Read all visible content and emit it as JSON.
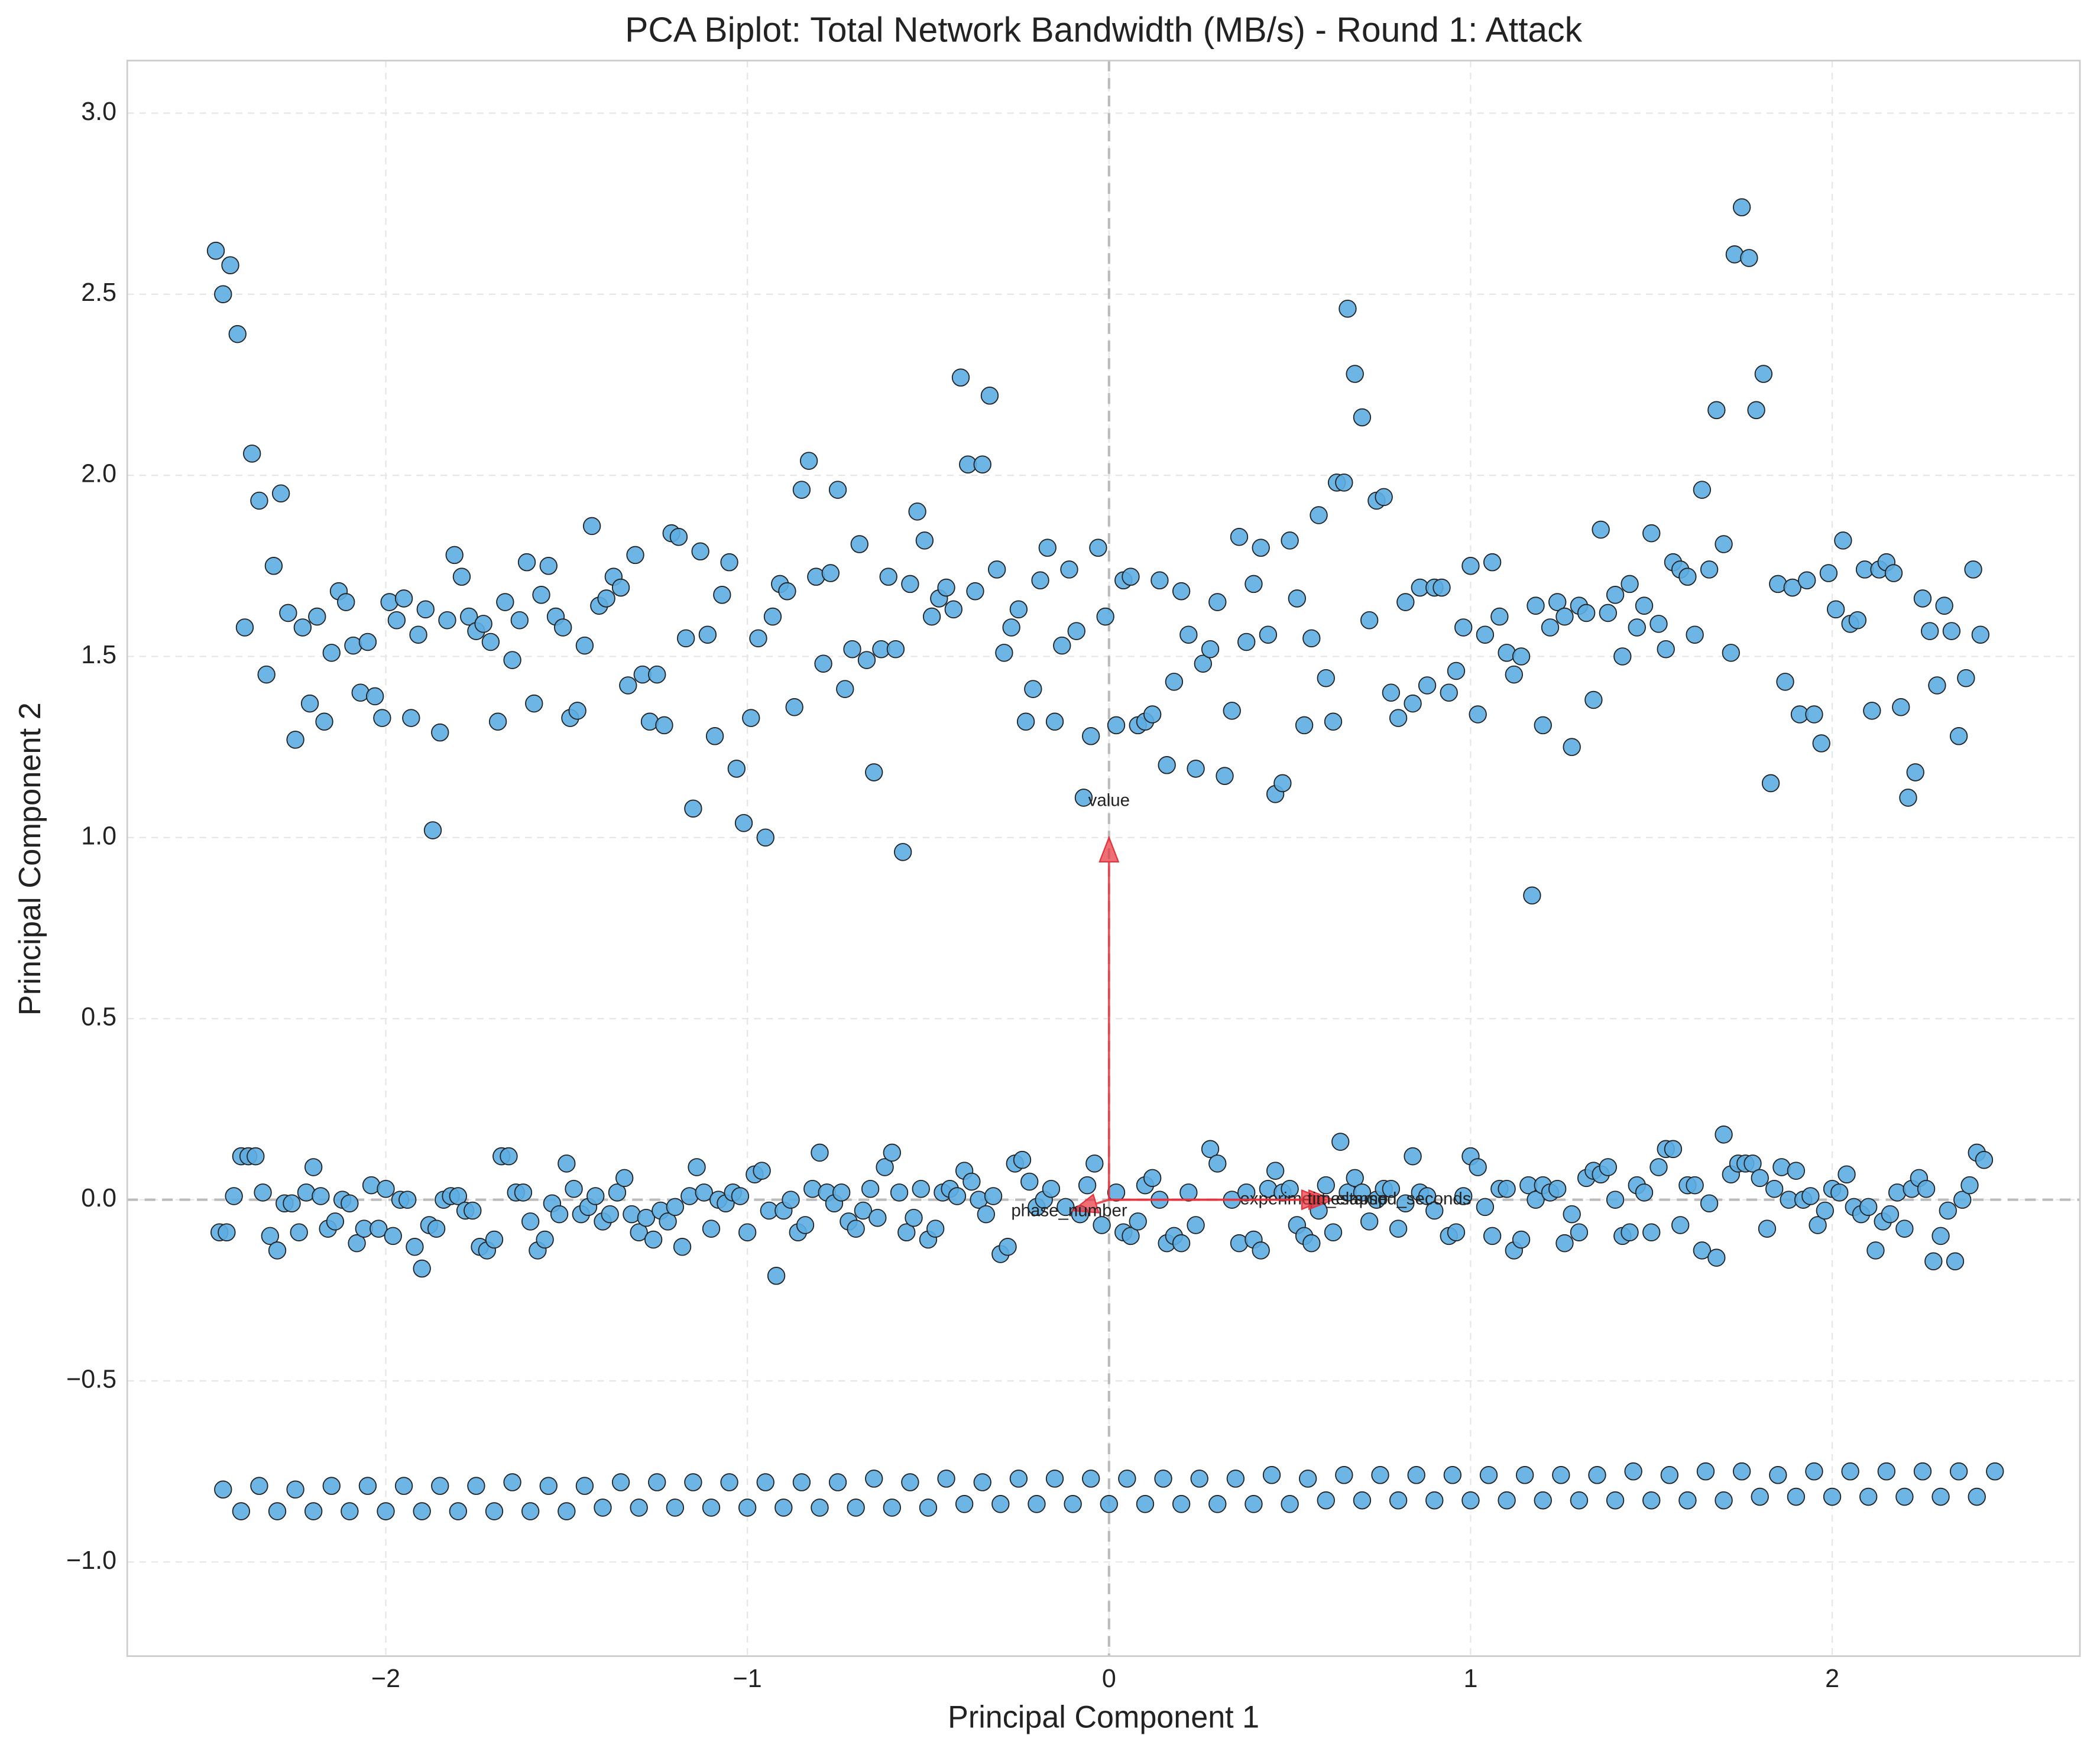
{
  "chart_data": {
    "type": "scatter",
    "title": "PCA Biplot: Total Network Bandwidth (MB/s) - Round 1: Attack",
    "x_label": "Principal Component 1",
    "y_label": "Principal Component 2",
    "color": "#5dade2",
    "grid": true,
    "xlim": [
      -2.715,
      2.685
    ],
    "ylim": [
      -1.26,
      3.145
    ],
    "xticks": [
      {
        "value": -2,
        "label": "−2"
      },
      {
        "value": -1,
        "label": "−1"
      },
      0,
      1,
      2
    ],
    "yticks": [
      {
        "value": -1.0,
        "label": "−1.0"
      },
      {
        "value": -0.5,
        "label": "−0.5"
      },
      {
        "value": 0.0,
        "label": "0.0"
      },
      0.5,
      {
        "value": 1.0,
        "label": "1.0"
      },
      1.5,
      {
        "value": 2.0,
        "label": "2.0"
      },
      2.5,
      {
        "value": 3.0,
        "label": "3.0"
      }
    ],
    "x": [
      -2.47,
      -2.45,
      -2.43,
      -2.41,
      -2.39,
      -2.37,
      -2.35,
      -2.33,
      -2.31,
      -2.29,
      -2.27,
      -2.25,
      -2.23,
      -2.21,
      -2.19,
      -2.17,
      -2.15,
      -2.13,
      -2.11,
      -2.09,
      -2.07,
      -2.05,
      -2.03,
      -2.01,
      -1.99,
      -1.97,
      -1.95,
      -1.93,
      -1.91,
      -1.89,
      -1.87,
      -1.85,
      -1.83,
      -1.81,
      -1.79,
      -1.77,
      -1.75,
      -1.73,
      -1.71,
      -1.69,
      -1.67,
      -1.65,
      -1.63,
      -1.61,
      -1.59,
      -1.57,
      -1.55,
      -1.53,
      -1.51,
      -1.49,
      -1.47,
      -1.45,
      -1.43,
      -1.41,
      -1.39,
      -1.37,
      -1.35,
      -1.33,
      -1.31,
      -1.29,
      -1.27,
      -1.25,
      -1.23,
      -1.21,
      -1.19,
      -1.17,
      -1.15,
      -1.13,
      -1.11,
      -1.09,
      -1.07,
      -1.05,
      -1.03,
      -1.01,
      -0.99,
      -0.97,
      -0.95,
      -0.93,
      -0.91,
      -0.89,
      -0.87,
      -0.85,
      -0.83,
      -0.81,
      -0.79,
      -0.77,
      -0.75,
      -0.73,
      -0.71,
      -0.69,
      -0.67,
      -0.65,
      -0.63,
      -0.61,
      -0.59,
      -0.57,
      -0.55,
      -0.53,
      -0.51,
      -0.49,
      -0.47,
      -0.45,
      -0.43,
      -0.41,
      -0.39,
      -0.37,
      -0.35,
      -0.33,
      -0.31,
      -0.29,
      -0.27,
      -0.25,
      -0.23,
      -0.21,
      -0.19,
      -0.17,
      -0.15,
      -0.13,
      -0.11,
      -0.09,
      -0.07,
      -0.05,
      -0.03,
      -0.01,
      0.02,
      0.04,
      0.06,
      0.08,
      0.1,
      0.12,
      0.14,
      0.16,
      0.18,
      0.2,
      0.22,
      0.24,
      0.26,
      0.28,
      0.3,
      0.32,
      0.34,
      0.36,
      0.38,
      0.4,
      0.42,
      0.44,
      0.46,
      0.48,
      0.5,
      0.52,
      0.54,
      0.56,
      0.58,
      0.6,
      0.62,
      0.63,
      0.65,
      0.66,
      0.68,
      0.7,
      0.72,
      0.74,
      0.76,
      0.78,
      0.8,
      0.82,
      0.84,
      0.86,
      0.88,
      0.9,
      0.92,
      0.94,
      0.96,
      0.98,
      1.0,
      1.02,
      1.04,
      1.06,
      1.08,
      1.1,
      1.12,
      1.14,
      1.17,
      1.18,
      1.2,
      1.22,
      1.24,
      1.26,
      1.28,
      1.3,
      1.32,
      1.34,
      1.36,
      1.38,
      1.4,
      1.42,
      1.44,
      1.46,
      1.48,
      1.5,
      1.52,
      1.54,
      1.56,
      1.58,
      1.6,
      1.62,
      1.64,
      1.66,
      1.68,
      1.7,
      1.72,
      1.73,
      1.75,
      1.77,
      1.79,
      1.81,
      1.83,
      1.85,
      1.87,
      1.89,
      1.91,
      1.93,
      1.95,
      1.97,
      1.99,
      2.01,
      2.03,
      2.05,
      2.07,
      2.09,
      2.11,
      2.13,
      2.15,
      2.17,
      2.19,
      2.21,
      2.23,
      2.25,
      2.27,
      2.29,
      2.31,
      2.33,
      2.35,
      2.37,
      2.39,
      2.41,
      -2.46,
      -2.44,
      -2.42,
      -2.4,
      -2.38,
      -2.36,
      -2.34,
      -2.32,
      -2.3,
      -2.28,
      -2.26,
      -2.24,
      -2.22,
      -2.2,
      -2.18,
      -2.16,
      -2.14,
      -2.12,
      -2.1,
      -2.08,
      -2.06,
      -2.04,
      -2.02,
      -2.0,
      -1.98,
      -1.96,
      -1.94,
      -1.92,
      -1.9,
      -1.88,
      -1.86,
      -1.84,
      -1.82,
      -1.8,
      -1.78,
      -1.76,
      -1.74,
      -1.72,
      -1.7,
      -1.68,
      -1.66,
      -1.64,
      -1.62,
      -1.6,
      -1.58,
      -1.56,
      -1.54,
      -1.52,
      -1.5,
      -1.48,
      -1.46,
      -1.44,
      -1.42,
      -1.4,
      -1.38,
      -1.36,
      -1.34,
      -1.32,
      -1.3,
      -1.28,
      -1.26,
      -1.24,
      -1.22,
      -1.2,
      -1.18,
      -1.16,
      -1.14,
      -1.12,
      -1.1,
      -1.08,
      -1.06,
      -1.04,
      -1.02,
      -1.0,
      -0.98,
      -0.96,
      -0.94,
      -0.92,
      -0.9,
      -0.88,
      -0.86,
      -0.84,
      -0.82,
      -0.8,
      -0.78,
      -0.76,
      -0.74,
      -0.72,
      -0.7,
      -0.68,
      -0.66,
      -0.64,
      -0.62,
      -0.6,
      -0.58,
      -0.56,
      -0.54,
      -0.52,
      -0.5,
      -0.48,
      -0.46,
      -0.44,
      -0.42,
      -0.4,
      -0.38,
      -0.36,
      -0.34,
      -0.32,
      -0.3,
      -0.28,
      -0.26,
      -0.24,
      -0.22,
      -0.2,
      -0.18,
      -0.16,
      -0.12,
      -0.08,
      -0.06,
      -0.04,
      -0.02,
      0.02,
      0.04,
      0.06,
      0.08,
      0.1,
      0.12,
      0.14,
      0.16,
      0.18,
      0.2,
      0.22,
      0.24,
      0.28,
      0.3,
      0.34,
      0.36,
      0.38,
      0.4,
      0.42,
      0.44,
      0.46,
      0.48,
      0.5,
      0.52,
      0.54,
      0.56,
      0.58,
      0.6,
      0.62,
      0.64,
      0.66,
      0.68,
      0.7,
      0.72,
      0.74,
      0.76,
      0.78,
      0.8,
      0.82,
      0.84,
      0.86,
      0.88,
      0.9,
      0.94,
      0.96,
      0.98,
      1.0,
      1.02,
      1.04,
      1.06,
      1.08,
      1.1,
      1.12,
      1.14,
      1.16,
      1.18,
      1.2,
      1.22,
      1.24,
      1.26,
      1.28,
      1.3,
      1.32,
      1.34,
      1.36,
      1.38,
      1.4,
      1.42,
      1.44,
      1.46,
      1.48,
      1.5,
      1.52,
      1.54,
      1.56,
      1.58,
      1.6,
      1.62,
      1.64,
      1.66,
      1.68,
      1.7,
      1.72,
      1.74,
      1.76,
      1.78,
      1.8,
      1.82,
      1.84,
      1.86,
      1.88,
      1.9,
      1.92,
      1.94,
      1.96,
      1.98,
      2.0,
      2.02,
      2.04,
      2.06,
      2.08,
      2.1,
      2.12,
      2.14,
      2.16,
      2.18,
      2.2,
      2.22,
      2.24,
      2.26,
      2.28,
      2.3,
      2.32,
      2.34,
      2.36,
      2.38,
      2.4,
      2.42,
      -2.45,
      -2.35,
      -2.25,
      -2.15,
      -2.05,
      -1.95,
      -1.85,
      -1.75,
      -1.65,
      -1.55,
      -1.45,
      -1.35,
      -1.25,
      -1.15,
      -1.05,
      -0.95,
      -0.85,
      -0.75,
      -0.65,
      -0.55,
      -0.45,
      -0.35,
      -0.25,
      -0.15,
      -0.05,
      0.05,
      0.15,
      0.25,
      0.35,
      0.45,
      0.55,
      0.65,
      0.75,
      0.85,
      0.95,
      1.05,
      1.15,
      1.25,
      1.35,
      1.45,
      1.55,
      1.65,
      1.75,
      1.85,
      1.95,
      2.05,
      2.15,
      2.25,
      2.35,
      2.45,
      -2.4,
      -2.3,
      -2.2,
      -2.1,
      -2.0,
      -1.9,
      -1.8,
      -1.7,
      -1.6,
      -1.5,
      -1.4,
      -1.3,
      -1.2,
      -1.1,
      -1.0,
      -0.9,
      -0.8,
      -0.7,
      -0.6,
      -0.5,
      -0.4,
      -0.3,
      -0.2,
      -0.1,
      0.0,
      0.1,
      0.2,
      0.3,
      0.4,
      0.5,
      0.6,
      0.7,
      0.8,
      0.9,
      1.0,
      1.1,
      1.2,
      1.3,
      1.4,
      1.5,
      1.6,
      1.7,
      1.8,
      1.9,
      2.0,
      2.1,
      2.2,
      2.3,
      2.4
    ],
    "values": [
      2.62,
      2.5,
      2.58,
      2.39,
      1.58,
      2.06,
      1.93,
      1.45,
      1.75,
      1.95,
      1.62,
      1.27,
      1.58,
      1.37,
      1.61,
      1.32,
      1.51,
      1.68,
      1.65,
      1.53,
      1.4,
      1.54,
      1.39,
      1.33,
      1.65,
      1.6,
      1.66,
      1.33,
      1.56,
      1.63,
      1.02,
      1.29,
      1.6,
      1.78,
      1.72,
      1.61,
      1.57,
      1.59,
      1.54,
      1.32,
      1.65,
      1.49,
      1.6,
      1.76,
      1.37,
      1.67,
      1.75,
      1.61,
      1.58,
      1.33,
      1.35,
      1.53,
      1.86,
      1.64,
      1.66,
      1.72,
      1.69,
      1.42,
      1.78,
      1.45,
      1.32,
      1.45,
      1.31,
      1.84,
      1.83,
      1.55,
      1.08,
      1.79,
      1.56,
      1.28,
      1.67,
      1.76,
      1.19,
      1.04,
      1.33,
      1.55,
      1.0,
      1.61,
      1.7,
      1.68,
      1.36,
      1.96,
      2.04,
      1.72,
      1.48,
      1.73,
      1.96,
      1.41,
      1.52,
      1.81,
      1.49,
      1.18,
      1.52,
      1.72,
      1.52,
      0.96,
      1.7,
      1.9,
      1.82,
      1.61,
      1.66,
      1.69,
      1.63,
      2.27,
      2.03,
      1.68,
      2.03,
      2.22,
      1.74,
      1.51,
      1.58,
      1.63,
      1.32,
      1.41,
      1.71,
      1.8,
      1.32,
      1.53,
      1.74,
      1.57,
      1.11,
      1.28,
      1.8,
      1.61,
      1.31,
      1.71,
      1.72,
      1.31,
      1.32,
      1.34,
      1.71,
      1.2,
      1.43,
      1.68,
      1.56,
      1.19,
      1.48,
      1.52,
      1.65,
      1.17,
      1.35,
      1.83,
      1.54,
      1.7,
      1.8,
      1.56,
      1.12,
      1.15,
      1.82,
      1.66,
      1.31,
      1.55,
      1.89,
      1.44,
      1.32,
      1.98,
      1.98,
      2.46,
      2.28,
      2.16,
      1.6,
      1.93,
      1.94,
      1.4,
      1.33,
      1.65,
      1.37,
      1.69,
      1.42,
      1.69,
      1.69,
      1.4,
      1.46,
      1.58,
      1.75,
      1.34,
      1.56,
      1.76,
      1.61,
      1.51,
      1.45,
      1.5,
      0.84,
      1.64,
      1.31,
      1.58,
      1.65,
      1.61,
      1.25,
      1.64,
      1.62,
      1.38,
      1.85,
      1.62,
      1.67,
      1.5,
      1.7,
      1.58,
      1.64,
      1.84,
      1.59,
      1.52,
      1.76,
      1.74,
      1.72,
      1.56,
      1.96,
      1.74,
      2.18,
      1.81,
      1.51,
      2.61,
      2.74,
      2.6,
      2.18,
      2.28,
      1.15,
      1.7,
      1.43,
      1.69,
      1.34,
      1.71,
      1.34,
      1.26,
      1.73,
      1.63,
      1.82,
      1.59,
      1.6,
      1.74,
      1.35,
      1.74,
      1.76,
      1.73,
      1.36,
      1.11,
      1.18,
      1.66,
      1.57,
      1.42,
      1.64,
      1.57,
      1.28,
      1.44,
      1.74,
      1.56,
      -0.09,
      -0.09,
      0.01,
      0.12,
      0.12,
      0.12,
      0.02,
      -0.1,
      -0.14,
      -0.01,
      -0.01,
      -0.09,
      0.02,
      0.09,
      0.01,
      -0.08,
      -0.06,
      0.0,
      -0.01,
      -0.12,
      -0.08,
      0.04,
      -0.08,
      0.03,
      -0.1,
      0.0,
      0.0,
      -0.13,
      -0.19,
      -0.07,
      -0.08,
      0.0,
      0.01,
      0.01,
      -0.03,
      -0.03,
      -0.13,
      -0.14,
      -0.11,
      0.12,
      0.12,
      0.02,
      0.02,
      -0.06,
      -0.14,
      -0.11,
      -0.01,
      -0.04,
      0.1,
      0.03,
      -0.04,
      -0.02,
      0.01,
      -0.06,
      -0.04,
      0.02,
      0.06,
      -0.04,
      -0.09,
      -0.05,
      -0.11,
      -0.03,
      -0.06,
      -0.02,
      -0.13,
      0.01,
      0.09,
      0.02,
      -0.08,
      0.0,
      -0.01,
      0.02,
      0.01,
      -0.09,
      0.07,
      0.08,
      -0.03,
      -0.21,
      -0.03,
      0.0,
      -0.09,
      -0.07,
      0.03,
      0.13,
      0.02,
      -0.01,
      0.02,
      -0.06,
      -0.08,
      -0.03,
      0.03,
      -0.05,
      0.09,
      0.13,
      0.02,
      -0.09,
      -0.05,
      0.03,
      -0.11,
      -0.08,
      0.02,
      0.03,
      0.01,
      0.08,
      0.05,
      0.0,
      -0.04,
      0.01,
      -0.15,
      -0.13,
      0.1,
      0.11,
      0.05,
      -0.02,
      0.0,
      0.03,
      -0.02,
      -0.04,
      0.04,
      0.1,
      -0.07,
      0.02,
      -0.09,
      -0.1,
      -0.06,
      0.04,
      0.06,
      0.0,
      -0.12,
      -0.1,
      -0.12,
      0.02,
      -0.07,
      0.14,
      0.1,
      0.0,
      -0.12,
      0.02,
      -0.11,
      -0.14,
      0.03,
      0.08,
      0.02,
      0.03,
      -0.07,
      -0.1,
      -0.12,
      -0.03,
      0.04,
      -0.09,
      0.16,
      0.02,
      0.06,
      0.02,
      -0.06,
      0.0,
      0.03,
      0.03,
      -0.08,
      -0.01,
      0.12,
      0.02,
      0.01,
      -0.03,
      -0.1,
      -0.09,
      0.01,
      0.12,
      0.09,
      -0.02,
      -0.1,
      0.03,
      0.03,
      -0.14,
      -0.11,
      0.04,
      0.0,
      0.04,
      0.02,
      0.03,
      -0.12,
      -0.04,
      -0.09,
      0.06,
      0.08,
      0.07,
      0.09,
      0.0,
      -0.1,
      -0.09,
      0.04,
      0.02,
      -0.09,
      0.09,
      0.14,
      0.14,
      -0.07,
      0.04,
      0.04,
      -0.14,
      -0.01,
      -0.16,
      0.18,
      0.07,
      0.1,
      0.1,
      0.1,
      0.06,
      -0.08,
      0.03,
      0.09,
      0.0,
      0.08,
      0.0,
      0.01,
      -0.07,
      -0.03,
      0.03,
      0.02,
      0.07,
      -0.02,
      -0.04,
      -0.02,
      -0.14,
      -0.06,
      -0.04,
      0.02,
      -0.08,
      0.03,
      0.06,
      0.03,
      -0.17,
      -0.1,
      -0.03,
      -0.17,
      0.0,
      0.04,
      0.13,
      0.11,
      -0.8,
      -0.79,
      -0.8,
      -0.79,
      -0.79,
      -0.79,
      -0.79,
      -0.79,
      -0.78,
      -0.79,
      -0.79,
      -0.78,
      -0.78,
      -0.78,
      -0.78,
      -0.78,
      -0.78,
      -0.78,
      -0.77,
      -0.78,
      -0.77,
      -0.78,
      -0.77,
      -0.77,
      -0.77,
      -0.77,
      -0.77,
      -0.77,
      -0.77,
      -0.76,
      -0.77,
      -0.76,
      -0.76,
      -0.76,
      -0.76,
      -0.76,
      -0.76,
      -0.76,
      -0.76,
      -0.75,
      -0.76,
      -0.75,
      -0.75,
      -0.76,
      -0.75,
      -0.75,
      -0.75,
      -0.75,
      -0.75,
      -0.75,
      -0.86,
      -0.86,
      -0.86,
      -0.86,
      -0.86,
      -0.86,
      -0.86,
      -0.86,
      -0.86,
      -0.86,
      -0.85,
      -0.85,
      -0.85,
      -0.85,
      -0.85,
      -0.85,
      -0.85,
      -0.85,
      -0.85,
      -0.85,
      -0.84,
      -0.84,
      -0.84,
      -0.84,
      -0.84,
      -0.84,
      -0.84,
      -0.84,
      -0.84,
      -0.84,
      -0.83,
      -0.83,
      -0.83,
      -0.83,
      -0.83,
      -0.83,
      -0.83,
      -0.83,
      -0.83,
      -0.83,
      -0.83,
      -0.83,
      -0.82,
      -0.82,
      -0.82,
      -0.82,
      -0.82,
      -0.82,
      -0.82
    ],
    "loadings_color": "#e8323c",
    "loadings": [
      {
        "label": "value",
        "x": 0.0,
        "y": 1.0
      },
      {
        "label": "phase_number",
        "x": -0.1,
        "y": -0.03
      },
      {
        "label": "experiment_elapsed_seconds",
        "x": 0.62,
        "y": 0.0
      },
      {
        "label": "timestamp",
        "x": 0.6,
        "y": 0.0
      }
    ]
  }
}
